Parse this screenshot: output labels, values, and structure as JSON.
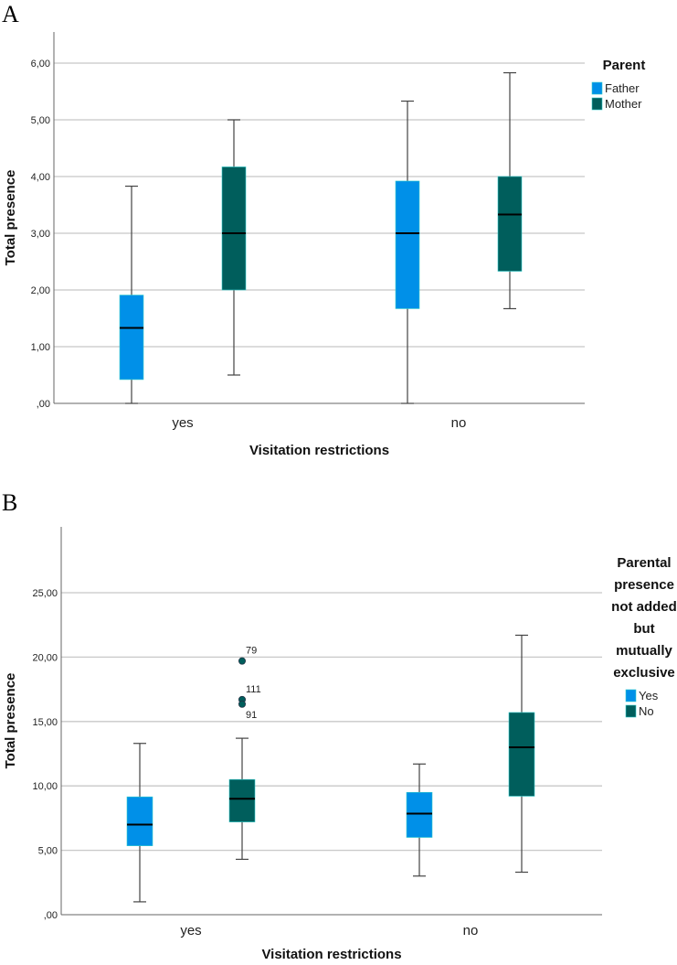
{
  "chart_data": [
    {
      "type": "box",
      "panel_label": "A",
      "title": "",
      "xlabel": "Visitation restrictions",
      "ylabel": "Total presence",
      "ylim": [
        0,
        6.5
      ],
      "yticks": [
        0,
        1,
        2,
        3,
        4,
        5,
        6
      ],
      "ytick_labels": [
        ",00",
        "1,00",
        "2,00",
        "3,00",
        "4,00",
        "5,00",
        "6,00"
      ],
      "grid": true,
      "categories": [
        "yes",
        "no"
      ],
      "legend": {
        "title_lines": [
          "Parent"
        ],
        "placement": "top-right"
      },
      "series": [
        {
          "name": "Father",
          "color": "#0090e8",
          "boxes": [
            {
              "whisker_low": 0.0,
              "q1": 0.42,
              "median": 1.33,
              "q3": 1.91,
              "whisker_high": 3.83,
              "outliers": []
            },
            {
              "whisker_low": 0.0,
              "q1": 1.67,
              "median": 3.0,
              "q3": 3.92,
              "whisker_high": 5.33,
              "outliers": []
            }
          ]
        },
        {
          "name": "Mother",
          "color": "#005e5c",
          "boxes": [
            {
              "whisker_low": 0.5,
              "q1": 2.0,
              "median": 3.0,
              "q3": 4.17,
              "whisker_high": 5.0,
              "outliers": []
            },
            {
              "whisker_low": 1.67,
              "q1": 2.33,
              "median": 3.33,
              "q3": 4.0,
              "whisker_high": 5.83,
              "outliers": []
            }
          ]
        }
      ]
    },
    {
      "type": "box",
      "panel_label": "B",
      "title": "",
      "xlabel": "Visitation restrictions",
      "ylabel": "Total presence",
      "ylim": [
        0,
        27.5
      ],
      "yticks": [
        0,
        5,
        10,
        15,
        20,
        25
      ],
      "ytick_labels": [
        ",00",
        "5,00",
        "10,00",
        "15,00",
        "20,00",
        "25,00"
      ],
      "grid": true,
      "categories": [
        "yes",
        "no"
      ],
      "legend": {
        "title_lines": [
          "Parental",
          "presence",
          "not added",
          "but",
          "mutually",
          "exclusive"
        ],
        "placement": "top-right"
      },
      "series": [
        {
          "name": "Yes",
          "color": "#0090e8",
          "boxes": [
            {
              "whisker_low": 1.0,
              "q1": 5.35,
              "median": 7.0,
              "q3": 9.15,
              "whisker_high": 13.3,
              "outliers": []
            },
            {
              "whisker_low": 3.0,
              "q1": 6.0,
              "median": 7.85,
              "q3": 9.5,
              "whisker_high": 11.7,
              "outliers": []
            }
          ]
        },
        {
          "name": "No",
          "color": "#005e5c",
          "boxes": [
            {
              "whisker_low": 4.3,
              "q1": 7.2,
              "median": 9.0,
              "q3": 10.5,
              "whisker_high": 13.7,
              "outliers": [
                {
                  "value": 19.7,
                  "label": "79",
                  "label_pos": "above"
                },
                {
                  "value": 16.7,
                  "label": "111",
                  "label_pos": "above"
                },
                {
                  "value": 16.35,
                  "label": "91",
                  "label_pos": "below"
                }
              ]
            },
            {
              "whisker_low": 3.3,
              "q1": 9.2,
              "median": 13.0,
              "q3": 15.7,
              "whisker_high": 21.7,
              "outliers": []
            }
          ]
        }
      ]
    }
  ]
}
